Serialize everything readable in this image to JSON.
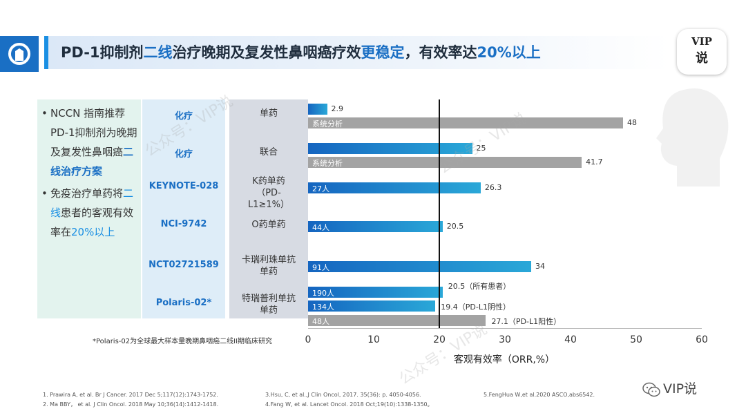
{
  "title": {
    "part1": "PD-1抑制剂",
    "highlight1": "二线",
    "part2": "治疗晚期及复发性鼻咽癌疗效",
    "highlight2": "更稳定",
    "part3": "，有效率达",
    "highlight3": "20%以上"
  },
  "badge": {
    "line1": "VIP",
    "line2": "说"
  },
  "left_panel": {
    "bullet_mark": "•",
    "bullet1_text": "NCCN 指南推荐PD-1抑制剂为晚期及复发性鼻咽癌",
    "bullet1_highlight": "二线治疗方案",
    "bullet2_text1": "免疫治疗单药将",
    "bullet2_highlight1": "二线",
    "bullet2_text2": "患者的客观有效率在",
    "bullet2_highlight2": "20%以上"
  },
  "rows": [
    {
      "trial": "化疗",
      "regimen": "单药"
    },
    {
      "trial": "化疗",
      "regimen": "联合"
    },
    {
      "trial": "KEYNOTE-028",
      "regimen": "K药单药（PD-L1≥1%）"
    },
    {
      "trial": "NCI-9742",
      "regimen": "O药单药"
    },
    {
      "trial": "NCT02721589",
      "regimen": "卡瑞利珠单抗单药"
    },
    {
      "trial": "Polaris-02*",
      "regimen": "特瑞普利单抗单药"
    }
  ],
  "chart_data": {
    "type": "bar",
    "orientation": "horizontal",
    "xlabel": "客观有效率（ORR,%）",
    "xlim": [
      0,
      60
    ],
    "xticks": [
      0,
      10,
      20,
      30,
      40,
      50,
      60
    ],
    "reference_line": 20,
    "bars": [
      {
        "label": "",
        "value": 2.9,
        "value_label": "2.9",
        "color": "blue"
      },
      {
        "label": "系统分析",
        "value": 48,
        "value_label": "48",
        "color": "gray"
      },
      {
        "label": "",
        "value": 25,
        "value_label": "25",
        "color": "blue"
      },
      {
        "label": "系统分析",
        "value": 41.7,
        "value_label": "41.7",
        "color": "gray"
      },
      {
        "label": "27人",
        "value": 26.3,
        "value_label": "26.3",
        "color": "blue"
      },
      {
        "label": "44人",
        "value": 20.5,
        "value_label": "20.5",
        "color": "blue"
      },
      {
        "label": "91人",
        "value": 34,
        "value_label": "34",
        "color": "blue"
      },
      {
        "label": "190人",
        "value": 20.5,
        "value_label": "20.5（所有患者）",
        "color": "blue"
      },
      {
        "label": "134人",
        "value": 19.4,
        "value_label": "19.4（PD-L1阴性）",
        "color": "blue"
      },
      {
        "label": "48人",
        "value": 27.1,
        "value_label": "27.1（PD-L1阳性）",
        "color": "gray"
      }
    ]
  },
  "footnote": "*Polaris-02为全球最大样本量晚期鼻咽癌二线II期临床研究",
  "references": [
    "1. Prawira A, et al. Br J Cancer. 2017 Dec 5;117(12):1743-1752.",
    "2. Ma BBY， et al. J Clin Oncol. 2018 May 10;36(14):1412-1418.",
    "3.Hsu, C, et al.,J Clin Oncol, 2017. 35(36): p. 4050-4056.",
    "4.Fang W, et al. Lancet Oncol. 2018 Oct;19(10):1338-1350。",
    "5.FengHua W,et al.2020 ASCO,abs6542."
  ],
  "brand": "VIP说",
  "watermark": "公众号：VIP说"
}
